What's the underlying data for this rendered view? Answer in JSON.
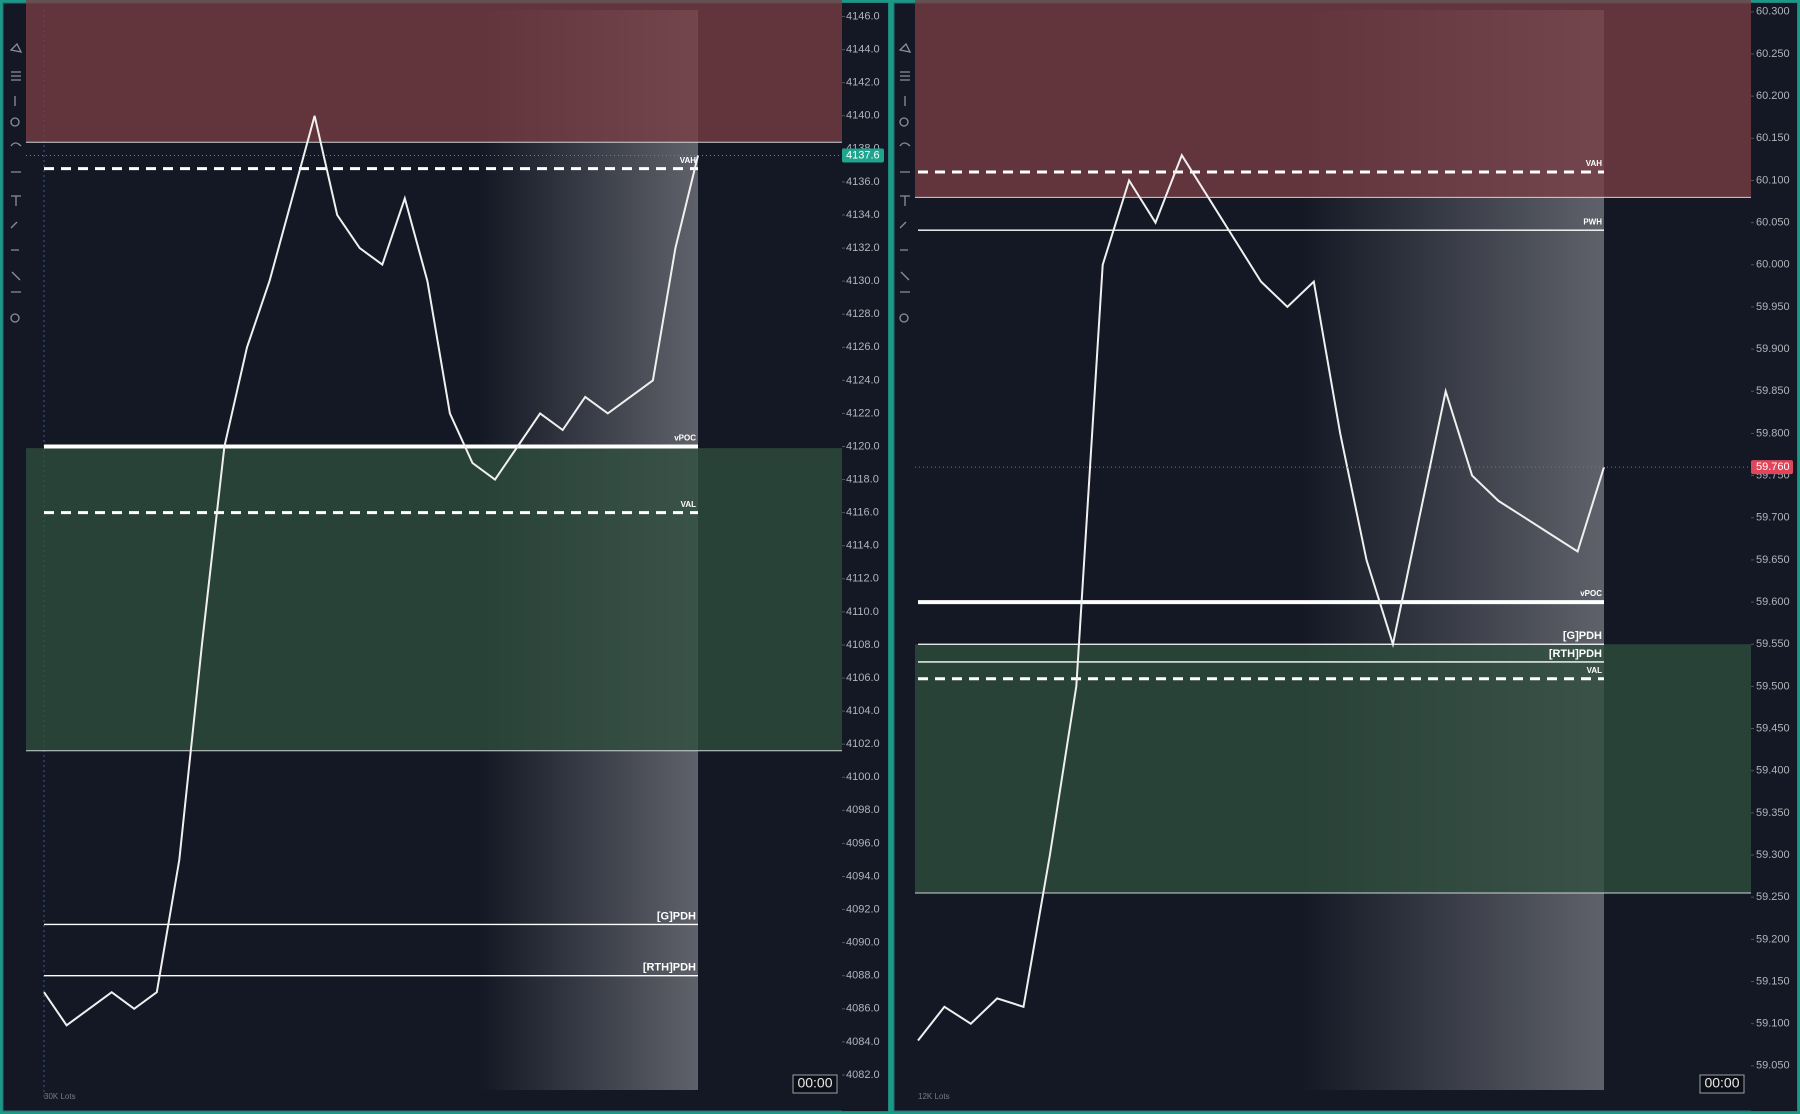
{
  "chart_data": [
    {
      "type": "line",
      "color": "#f0f0f0",
      "volume_unit": "30K Lots",
      "clock": "00:00",
      "ylim": [
        4080.0,
        4147.0
      ],
      "yticks": [
        {
          "value": 4146,
          "label": "4146.0"
        },
        {
          "value": 4144,
          "label": "4144.0"
        },
        {
          "value": 4142,
          "label": "4142.0"
        },
        {
          "value": 4140,
          "label": "4140.0"
        },
        {
          "value": 4138,
          "label": "4138.0"
        },
        {
          "value": 4136,
          "label": "4136.0"
        },
        {
          "value": 4134,
          "label": "4134.0"
        },
        {
          "value": 4132,
          "label": "4132.0"
        },
        {
          "value": 4130,
          "label": "4130.0"
        },
        {
          "value": 4128,
          "label": "4128.0"
        },
        {
          "value": 4126,
          "label": "4126.0"
        },
        {
          "value": 4124,
          "label": "4124.0"
        },
        {
          "value": 4122,
          "label": "4122.0"
        },
        {
          "value": 4120,
          "label": "4120.0"
        },
        {
          "value": 4118,
          "label": "4118.0"
        },
        {
          "value": 4116,
          "label": "4116.0"
        },
        {
          "value": 4114,
          "label": "4114.0"
        },
        {
          "value": 4112,
          "label": "4112.0"
        },
        {
          "value": 4110,
          "label": "4110.0"
        },
        {
          "value": 4108,
          "label": "4108.0"
        },
        {
          "value": 4106,
          "label": "4106.0"
        },
        {
          "value": 4104,
          "label": "4104.0"
        },
        {
          "value": 4102,
          "label": "4102.0"
        },
        {
          "value": 4100,
          "label": "4100.0"
        },
        {
          "value": 4098,
          "label": "4098.0"
        },
        {
          "value": 4096,
          "label": "4096.0"
        },
        {
          "value": 4094,
          "label": "4094.0"
        },
        {
          "value": 4092,
          "label": "4092.0"
        },
        {
          "value": 4090,
          "label": "4090.0"
        },
        {
          "value": 4088,
          "label": "4088.0"
        },
        {
          "value": 4086,
          "label": "4086.0"
        },
        {
          "value": 4084,
          "label": "4084.0"
        },
        {
          "value": 4082,
          "label": "4082.0"
        }
      ],
      "zones": [
        {
          "from": 4138.4,
          "to": 4147.0,
          "color": "rgba(120,62,68,0.78)"
        },
        {
          "from": 4101.6,
          "to": 4119.9,
          "color": "rgba(48,78,62,0.78)"
        }
      ],
      "levels": [
        {
          "label": "VAH",
          "value": 4136.8,
          "style": "dashed"
        },
        {
          "label": "vPOC",
          "value": 4120.0,
          "style": "thick"
        },
        {
          "label": "VAL",
          "value": 4116.0,
          "style": "dashed"
        },
        {
          "label": "[G]PDH",
          "value": 4091.1,
          "style": "solid"
        },
        {
          "label": "[RTH]PDH",
          "value": 4088.0,
          "style": "solid"
        }
      ],
      "values": [
        4087,
        4085,
        4086,
        4087,
        4086,
        4087,
        4095,
        4108,
        4120,
        4126,
        4130,
        4135,
        4140,
        4134,
        4132,
        4131,
        4135,
        4130,
        4122,
        4119,
        4118,
        4120,
        4122,
        4121,
        4123,
        4122,
        4123,
        4124,
        4132,
        4137.6
      ],
      "last": 4137.6
    },
    {
      "type": "line",
      "color": "#f0f0f0",
      "volume_unit": "12K Lots",
      "clock": "00:00",
      "ylim": [
        59.0,
        60.314
      ],
      "yticks": [
        {
          "value": 60.3,
          "label": "60.300"
        },
        {
          "value": 60.25,
          "label": "60.250"
        },
        {
          "value": 60.2,
          "label": "60.200"
        },
        {
          "value": 60.15,
          "label": "60.150"
        },
        {
          "value": 60.1,
          "label": "60.100"
        },
        {
          "value": 60.05,
          "label": "60.050"
        },
        {
          "value": 60.0,
          "label": "60.000"
        },
        {
          "value": 59.95,
          "label": "59.950"
        },
        {
          "value": 59.9,
          "label": "59.900"
        },
        {
          "value": 59.85,
          "label": "59.850"
        },
        {
          "value": 59.8,
          "label": "59.800"
        },
        {
          "value": 59.75,
          "label": "59.750"
        },
        {
          "value": 59.7,
          "label": "59.700"
        },
        {
          "value": 59.65,
          "label": "59.650"
        },
        {
          "value": 59.6,
          "label": "59.600"
        },
        {
          "value": 59.55,
          "label": "59.550"
        },
        {
          "value": 59.5,
          "label": "59.500"
        },
        {
          "value": 59.45,
          "label": "59.450"
        },
        {
          "value": 59.4,
          "label": "59.400"
        },
        {
          "value": 59.35,
          "label": "59.350"
        },
        {
          "value": 59.3,
          "label": "59.300"
        },
        {
          "value": 59.25,
          "label": "59.250"
        },
        {
          "value": 59.2,
          "label": "59.200"
        },
        {
          "value": 59.15,
          "label": "59.150"
        },
        {
          "value": 59.1,
          "label": "59.100"
        },
        {
          "value": 59.05,
          "label": "59.050"
        }
      ],
      "zones": [
        {
          "from": 60.08,
          "to": 60.314,
          "color": "rgba(120,62,68,0.78)"
        },
        {
          "from": 59.255,
          "to": 59.55,
          "color": "rgba(48,78,62,0.78)"
        }
      ],
      "levels": [
        {
          "label": "VAH",
          "value": 60.11,
          "style": "dashed"
        },
        {
          "label": "PWH",
          "value": 60.041,
          "style": "solid"
        },
        {
          "label": "vPOC",
          "value": 59.6,
          "style": "thick"
        },
        {
          "label": "[G]PDH",
          "value": 59.55,
          "style": "solid"
        },
        {
          "label": "[RTH]PDH",
          "value": 59.529,
          "style": "solid"
        },
        {
          "label": "VAL",
          "value": 59.509,
          "style": "dashed"
        }
      ],
      "values": [
        59.08,
        59.12,
        59.1,
        59.13,
        59.12,
        59.3,
        59.5,
        60.0,
        60.1,
        60.05,
        60.13,
        60.08,
        60.03,
        59.98,
        59.95,
        59.98,
        59.8,
        59.65,
        59.55,
        59.7,
        59.85,
        59.75,
        59.72,
        59.7,
        59.68,
        59.66,
        59.76
      ],
      "last": {
        "value": 59.76,
        "label": "59.760"
      }
    }
  ]
}
